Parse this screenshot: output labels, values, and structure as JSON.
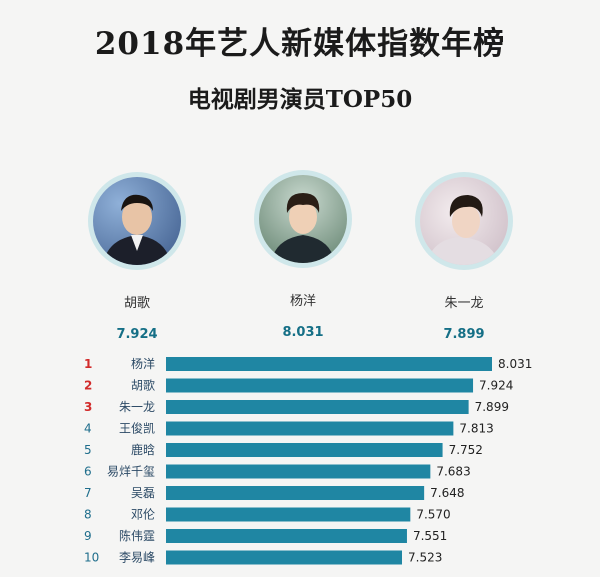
{
  "header": {
    "title": "2018年艺人新媒体指数年榜",
    "subtitle": "电视剧男演员TOP50"
  },
  "podium": [
    {
      "name": "胡歌",
      "score": "7.924"
    },
    {
      "name": "杨洋",
      "score": "8.031"
    },
    {
      "name": "朱一龙",
      "score": "7.899"
    }
  ],
  "colors": {
    "bar": "#1f86a3",
    "rank_top": "#d22b2b",
    "rank_other": "#1f6e8c",
    "accent": "#156f86"
  },
  "chart_data": {
    "type": "bar",
    "orientation": "horizontal",
    "categories": [
      "杨洋",
      "胡歌",
      "朱一龙",
      "王俊凯",
      "鹿晗",
      "易烊千玺",
      "吴磊",
      "邓伦",
      "陈伟霆",
      "李易峰"
    ],
    "ranks": [
      "1",
      "2",
      "3",
      "4",
      "5",
      "6",
      "7",
      "8",
      "9",
      "10"
    ],
    "values": [
      8.031,
      7.924,
      7.899,
      7.813,
      7.752,
      7.683,
      7.648,
      7.57,
      7.551,
      7.523
    ],
    "value_labels": [
      "8.031",
      "7.924",
      "7.899",
      "7.813",
      "7.752",
      "7.683",
      "7.648",
      "7.570",
      "7.551",
      "7.523"
    ],
    "title": "",
    "xlabel": "",
    "ylabel": "",
    "grid": false
  }
}
